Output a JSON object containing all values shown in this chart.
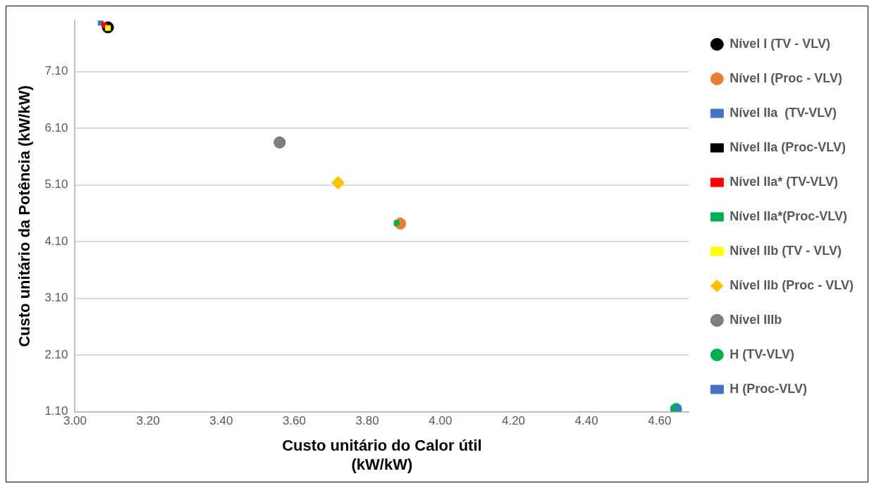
{
  "chart_data": {
    "type": "scatter",
    "xlabel": "Custo unitário do Calor útil\n(kW/kW)",
    "ylabel": "Custo unitário da Potência (kW/kW)",
    "xlim": [
      3.0,
      4.68
    ],
    "ylim": [
      1.1,
      8.0
    ],
    "xticks": [
      {
        "value": 3.0,
        "label": "3.00"
      },
      {
        "value": 3.2,
        "label": "3.20"
      },
      {
        "value": 3.4,
        "label": "3.40"
      },
      {
        "value": 3.6,
        "label": "3.60"
      },
      {
        "value": 3.8,
        "label": "3.80"
      },
      {
        "value": 4.0,
        "label": "4.00"
      },
      {
        "value": 4.2,
        "label": "4.20"
      },
      {
        "value": 4.4,
        "label": "4.40"
      },
      {
        "value": 4.6,
        "label": "4.60"
      }
    ],
    "yticks": [
      {
        "value": 1.1,
        "label": "1.10"
      },
      {
        "value": 2.1,
        "label": "2.10"
      },
      {
        "value": 3.1,
        "label": "3.10"
      },
      {
        "value": 4.1,
        "label": "4.10"
      },
      {
        "value": 5.1,
        "label": "5.10"
      },
      {
        "value": 6.1,
        "label": "6.10"
      },
      {
        "value": 7.1,
        "label": "7.10"
      }
    ],
    "grid": "y",
    "legend": "right",
    "series": [
      {
        "name": "Nível I (TV - VLV)",
        "color": "#000000",
        "marker": "circle",
        "x": [
          3.09
        ],
        "values": [
          7.88
        ]
      },
      {
        "name": "Nível I (Proc - VLV)",
        "color": "#ed7d31",
        "marker": "circle",
        "x": [
          3.89
        ],
        "values": [
          4.42
        ]
      },
      {
        "name": "Nível IIa  (TV-VLV)",
        "color": "#4472c4",
        "marker": "square",
        "x": [
          3.07
        ],
        "values": [
          7.96
        ]
      },
      {
        "name": "Nível IIa (Proc-VLV)",
        "color": "#000000",
        "marker": "square",
        "x": [
          null
        ],
        "values": [
          null
        ]
      },
      {
        "name": "Nível IIa* (TV-VLV)",
        "color": "#ff0000",
        "marker": "square",
        "x": [
          3.08
        ],
        "values": [
          7.92
        ]
      },
      {
        "name": "Nível IIa*(Proc-VLV)",
        "color": "#00b050",
        "marker": "square",
        "x": [
          3.88
        ],
        "values": [
          4.43
        ]
      },
      {
        "name": "Nível IIb (TV - VLV)",
        "color": "#ffff00",
        "marker": "square",
        "x": [
          3.09
        ],
        "values": [
          7.87
        ]
      },
      {
        "name": "Nível IIb (Proc - VLV)",
        "color": "#ffc000",
        "marker": "diamond",
        "x": [
          3.72
        ],
        "values": [
          5.14
        ]
      },
      {
        "name": "Nível IIIb",
        "color": "#808080",
        "marker": "circle",
        "x": [
          3.56
        ],
        "values": [
          5.85
        ]
      },
      {
        "name": "H (TV-VLV)",
        "color": "#00b050",
        "marker": "circle",
        "x": [
          4.645
        ],
        "values": [
          1.15
        ]
      },
      {
        "name": "H (Proc-VLV)",
        "color": "#4472c4",
        "marker": "square",
        "x": [
          4.65
        ],
        "values": [
          1.16
        ]
      }
    ]
  }
}
